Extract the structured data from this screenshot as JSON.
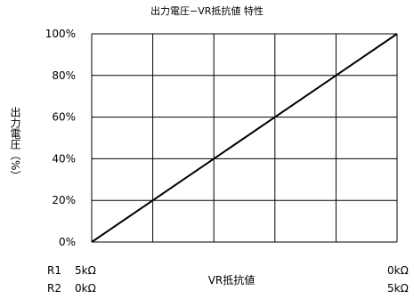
{
  "chart_data": {
    "type": "line",
    "title": "出力電圧−VR抵抗値 特性",
    "ylabel": "出力電圧（%）",
    "xlabel": "VR抵抗値",
    "ylim": [
      0,
      100
    ],
    "xlim": [
      0,
      100
    ],
    "y_ticks": [
      "0%",
      "20%",
      "40%",
      "60%",
      "80%",
      "100%"
    ],
    "x_divisions": 5,
    "grid": true,
    "series": [
      {
        "x": [
          0,
          100
        ],
        "y": [
          0,
          100
        ]
      }
    ],
    "x_scales": [
      {
        "name": "R1",
        "start": "5kΩ",
        "end": "0kΩ"
      },
      {
        "name": "R2",
        "start": "0kΩ",
        "end": "5kΩ"
      }
    ]
  }
}
